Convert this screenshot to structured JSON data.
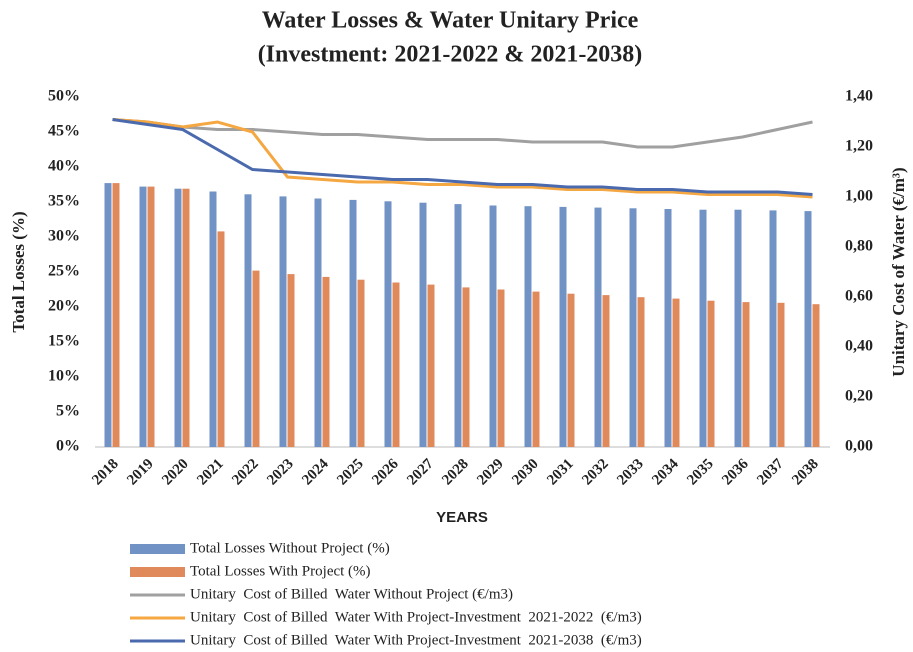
{
  "chart_data": {
    "type": "bar",
    "title": [
      "Water Losses & Water Unitary Price",
      "(Investment: 2021-2022 & 2021-2038)"
    ],
    "x_label": "YEARS",
    "y_label": "Total Losses (%)",
    "y2_label": "Unitary Cost of Water (€/m³)",
    "categories": [
      "2018",
      "2019",
      "2020",
      "2021",
      "2022",
      "2023",
      "2024",
      "2025",
      "2026",
      "2027",
      "2028",
      "2029",
      "2030",
      "2031",
      "2032",
      "2033",
      "2034",
      "2035",
      "2036",
      "2037",
      "2038"
    ],
    "ylim": [
      0,
      50
    ],
    "yticks": [
      {
        "value": 0,
        "label": "0%"
      },
      {
        "value": 5,
        "label": "5%"
      },
      {
        "value": 10,
        "label": "10%"
      },
      {
        "value": 15,
        "label": "15%"
      },
      {
        "value": 20,
        "label": "20%"
      },
      {
        "value": 25,
        "label": "25%"
      },
      {
        "value": 30,
        "label": "30%"
      },
      {
        "value": 35,
        "label": "35%"
      },
      {
        "value": 40,
        "label": "40%"
      },
      {
        "value": 45,
        "label": "45%"
      },
      {
        "value": 50,
        "label": "50%"
      }
    ],
    "y2lim": [
      0,
      1.4
    ],
    "y2ticks": [
      {
        "value": 0,
        "label": "0,00"
      },
      {
        "value": 0.2,
        "label": "0,20"
      },
      {
        "value": 0.4,
        "label": "0,40"
      },
      {
        "value": 0.6,
        "label": "0,60"
      },
      {
        "value": 0.8,
        "label": "0,80"
      },
      {
        "value": 1.0,
        "label": "1,00"
      },
      {
        "value": 1.2,
        "label": "1,20"
      },
      {
        "value": 1.4,
        "label": "1,40"
      }
    ],
    "series": [
      {
        "name": "Total Losses Without Project (%)",
        "type": "bar",
        "color": "#7092c4",
        "values": [
          37.7,
          37.2,
          36.9,
          36.5,
          36.1,
          35.8,
          35.5,
          35.3,
          35.1,
          34.9,
          34.7,
          34.5,
          34.4,
          34.3,
          34.2,
          34.1,
          34.0,
          33.9,
          33.9,
          33.8,
          33.7
        ]
      },
      {
        "name": "Total Losses With Project (%)",
        "type": "bar",
        "color": "#e08a5b",
        "values": [
          37.7,
          37.2,
          36.9,
          30.8,
          25.2,
          24.7,
          24.3,
          23.9,
          23.5,
          23.2,
          22.8,
          22.5,
          22.2,
          21.9,
          21.7,
          21.4,
          21.2,
          20.9,
          20.7,
          20.6,
          20.4
        ]
      },
      {
        "name": "Unitary  Cost of Billed  Water Without Project (€/m3)",
        "type": "line",
        "axis": "y2",
        "color": "#a0a0a0",
        "values": [
          1.31,
          1.3,
          1.28,
          1.27,
          1.27,
          1.26,
          1.25,
          1.25,
          1.24,
          1.23,
          1.23,
          1.23,
          1.22,
          1.22,
          1.22,
          1.2,
          1.2,
          1.22,
          1.24,
          1.27,
          1.3
        ]
      },
      {
        "name": "Unitary  Cost of Billed  Water With Project-Investment  2021-2022  (€/m3)",
        "type": "line",
        "axis": "y2",
        "color": "#f5a742",
        "values": [
          1.31,
          1.3,
          1.28,
          1.3,
          1.26,
          1.08,
          1.07,
          1.06,
          1.06,
          1.05,
          1.05,
          1.04,
          1.04,
          1.03,
          1.03,
          1.02,
          1.02,
          1.01,
          1.01,
          1.01,
          1.0
        ]
      },
      {
        "name": "Unitary  Cost of Billed  Water With Project-Investment  2021-2038  (€/m3)",
        "type": "line",
        "axis": "y2",
        "color": "#4a6aad",
        "values": [
          1.31,
          1.29,
          1.27,
          1.19,
          1.11,
          1.1,
          1.09,
          1.08,
          1.07,
          1.07,
          1.06,
          1.05,
          1.05,
          1.04,
          1.04,
          1.03,
          1.03,
          1.02,
          1.02,
          1.02,
          1.01
        ]
      }
    ]
  }
}
